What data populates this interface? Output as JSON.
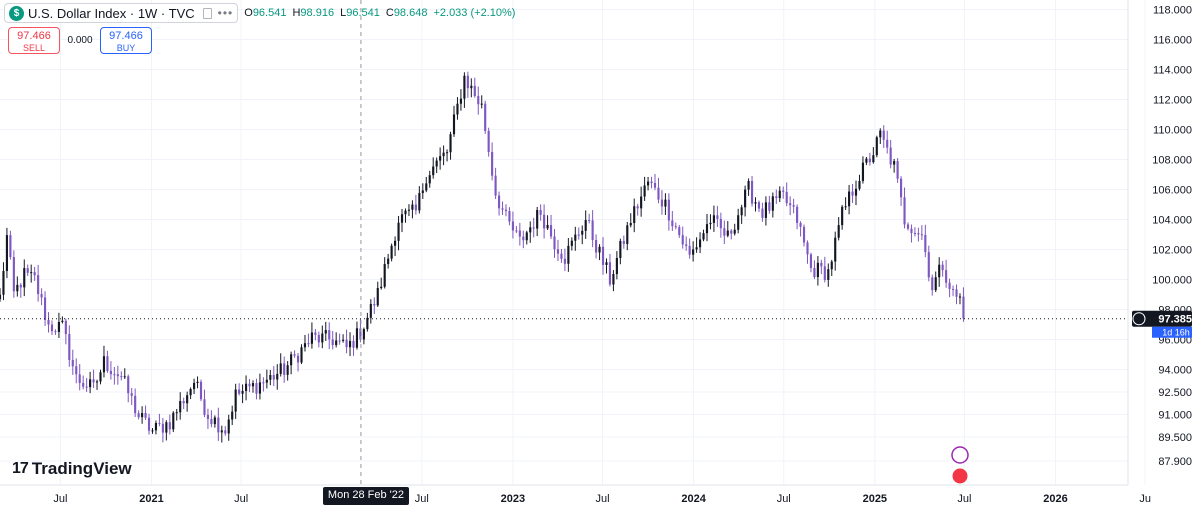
{
  "legend": {
    "symbol": "U.S. Dollar Index · 1W · TVC",
    "symbol_icon": "$",
    "open_label": "O",
    "open": "96.541",
    "high_label": "H",
    "high": "98.916",
    "low_label": "L",
    "low": "96.541",
    "close_label": "C",
    "close": "98.648",
    "change": "+2.033 (+2.10%)"
  },
  "trade": {
    "sell_price": "97.466",
    "sell_label": "SELL",
    "spread": "0.000",
    "buy_price": "97.466",
    "buy_label": "BUY"
  },
  "logo": {
    "mark": "17",
    "text": "TradingView"
  },
  "price_axis": {
    "ticks": [
      "118.000",
      "116.000",
      "114.000",
      "112.000",
      "110.000",
      "108.000",
      "106.000",
      "104.000",
      "102.000",
      "100.000",
      "98.000",
      "96.000",
      "94.000",
      "92.500",
      "91.000",
      "89.500",
      "87.900"
    ],
    "current_price": "97.385",
    "countdown": "1d 16h"
  },
  "time_axis": {
    "hover_date": "Mon 28 Feb '22"
  },
  "colors": {
    "up": "#131722",
    "down": "#7e57c2",
    "accent_green": "#089981",
    "accent_red": "#f23645",
    "grid": "#f0f3fa"
  },
  "chart_data": {
    "type": "candlestick",
    "interval": "1W",
    "yaxis": {
      "ylim": [
        87.3,
        118.3
      ],
      "ticks": [
        118,
        116,
        114,
        112,
        110,
        108,
        106,
        104,
        102,
        100,
        98,
        96,
        94,
        92.5,
        91,
        89.5,
        87.9
      ]
    },
    "xaxis": {
      "xlim": [
        "2020-03-01",
        "2026-07-31"
      ],
      "tick_labels": [
        {
          "label": "Jul",
          "date": "2020-07-01"
        },
        {
          "label": "2021",
          "date": "2021-01-01",
          "bold": true
        },
        {
          "label": "Jul",
          "date": "2021-07-01"
        },
        {
          "label": "Jul",
          "date": "2022-07-01"
        },
        {
          "label": "2023",
          "date": "2023-01-01",
          "bold": true
        },
        {
          "label": "Jul",
          "date": "2023-07-01"
        },
        {
          "label": "2024",
          "date": "2024-01-01",
          "bold": true
        },
        {
          "label": "Jul",
          "date": "2024-07-01"
        },
        {
          "label": "2025",
          "date": "2025-01-01",
          "bold": true
        },
        {
          "label": "Jul",
          "date": "2025-07-01"
        },
        {
          "label": "2026",
          "date": "2026-01-01",
          "bold": true
        },
        {
          "label": "Ju",
          "date": "2026-07-01"
        }
      ]
    },
    "crosshair_date": "2022-02-28",
    "current_price": 97.385,
    "close_anchors": [
      [
        "2020-03-01",
        98.8
      ],
      [
        "2020-03-15",
        102.8
      ],
      [
        "2020-03-29",
        99.0
      ],
      [
        "2020-04-19",
        100.3
      ],
      [
        "2020-05-10",
        100.0
      ],
      [
        "2020-06-07",
        96.9
      ],
      [
        "2020-07-05",
        96.8
      ],
      [
        "2020-08-02",
        93.4
      ],
      [
        "2020-09-06",
        92.7
      ],
      [
        "2020-09-27",
        94.5
      ],
      [
        "2020-11-01",
        93.5
      ],
      [
        "2020-12-06",
        90.9
      ],
      [
        "2021-01-03",
        89.9
      ],
      [
        "2021-02-07",
        90.5
      ],
      [
        "2021-03-28",
        93.2
      ],
      [
        "2021-04-25",
        91.0
      ],
      [
        "2021-05-30",
        90.0
      ],
      [
        "2021-06-20",
        92.3
      ],
      [
        "2021-08-22",
        93.3
      ],
      [
        "2021-09-26",
        94.0
      ],
      [
        "2021-11-21",
        96.1
      ],
      [
        "2022-01-02",
        96.0
      ],
      [
        "2022-01-30",
        95.4
      ],
      [
        "2022-02-27",
        96.5
      ],
      [
        "2022-04-03",
        99.0
      ],
      [
        "2022-05-15",
        104.0
      ],
      [
        "2022-06-19",
        104.5
      ],
      [
        "2022-07-10",
        107.0
      ],
      [
        "2022-08-21",
        108.5
      ],
      [
        "2022-09-25",
        113.5
      ],
      [
        "2022-10-30",
        111.5
      ],
      [
        "2022-11-27",
        105.8
      ],
      [
        "2022-12-18",
        104.0
      ],
      [
        "2023-01-15",
        102.5
      ],
      [
        "2023-02-26",
        104.5
      ],
      [
        "2023-03-26",
        102.5
      ],
      [
        "2023-04-16",
        101.5
      ],
      [
        "2023-05-28",
        104.0
      ],
      [
        "2023-07-16",
        100.0
      ],
      [
        "2023-08-27",
        104.0
      ],
      [
        "2023-10-01",
        106.5
      ],
      [
        "2023-11-05",
        105.0
      ],
      [
        "2023-12-24",
        101.5
      ],
      [
        "2024-02-04",
        104.0
      ],
      [
        "2024-03-10",
        102.8
      ],
      [
        "2024-04-21",
        106.0
      ],
      [
        "2024-05-19",
        104.5
      ],
      [
        "2024-06-30",
        105.5
      ],
      [
        "2024-07-28",
        104.0
      ],
      [
        "2024-08-25",
        100.7
      ],
      [
        "2024-09-29",
        100.5
      ],
      [
        "2024-10-27",
        104.3
      ],
      [
        "2024-11-24",
        106.5
      ],
      [
        "2024-12-29",
        108.5
      ],
      [
        "2025-01-12",
        109.6
      ],
      [
        "2025-02-09",
        107.5
      ],
      [
        "2025-03-02",
        104.0
      ],
      [
        "2025-04-06",
        103.0
      ],
      [
        "2025-04-27",
        99.5
      ],
      [
        "2025-05-18",
        101.0
      ],
      [
        "2025-06-08",
        99.0
      ],
      [
        "2025-06-22",
        98.7
      ],
      [
        "2025-06-29",
        97.4
      ]
    ]
  }
}
